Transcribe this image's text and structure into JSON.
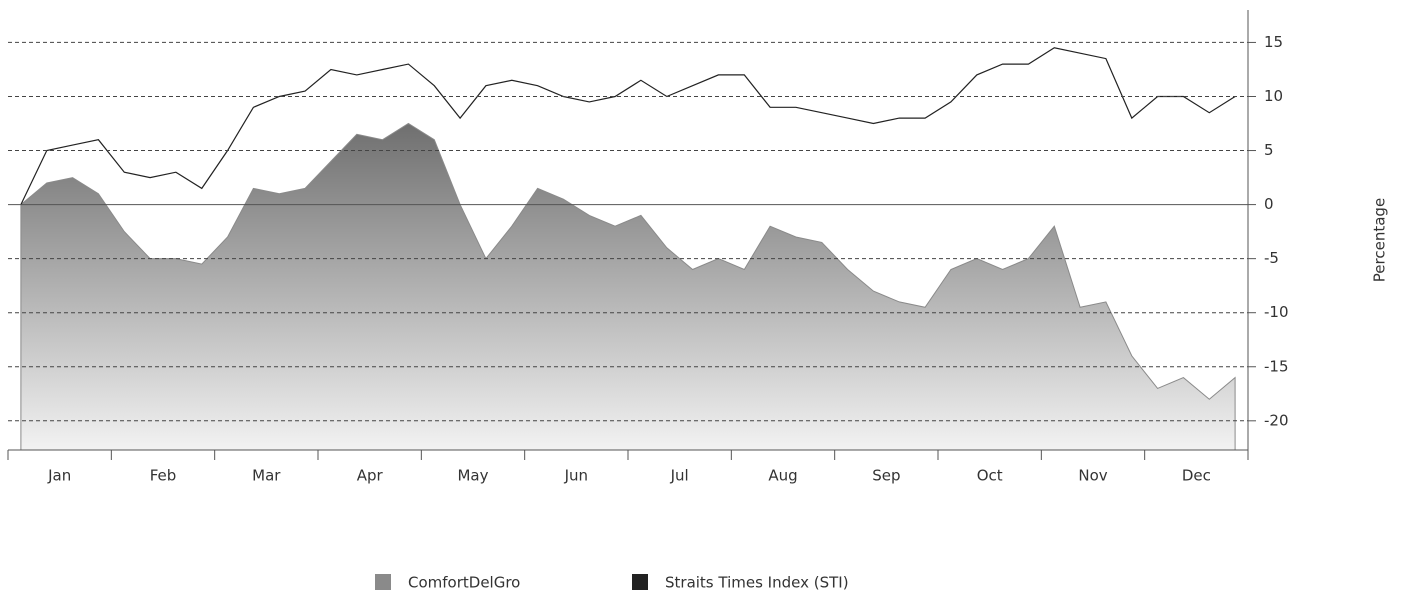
{
  "chart_data": {
    "type": "line",
    "ylabel": "Percentage",
    "categories": [
      "Jan",
      null,
      null,
      null,
      "Feb",
      null,
      null,
      null,
      "Mar",
      null,
      null,
      null,
      "Apr",
      null,
      null,
      null,
      "May",
      null,
      null,
      null,
      "Jun",
      null,
      null,
      null,
      "Jul",
      null,
      null,
      null,
      "Aug",
      null,
      null,
      null,
      "Sep",
      null,
      null,
      null,
      "Oct",
      null,
      null,
      null,
      "Nov",
      null,
      null,
      null,
      "Dec",
      null,
      null,
      null
    ],
    "series": [
      {
        "name": "ComfortDelGro",
        "color": "#8a8a8a",
        "style": "area",
        "values": [
          0,
          2,
          2.5,
          1,
          -2.5,
          -5,
          -5,
          -5.5,
          -3,
          1.5,
          1,
          1.5,
          4,
          6.5,
          6,
          7.5,
          6,
          0,
          -5,
          -2,
          1.5,
          0.5,
          -1,
          -2,
          -1,
          -4,
          -6,
          -5,
          -6,
          -2,
          -3,
          -3.5,
          -6,
          -8,
          -9,
          -9.5,
          -6,
          -5,
          -6,
          -5,
          -2,
          -9.5,
          -9,
          -14,
          -17,
          -16,
          -18,
          -16
        ]
      },
      {
        "name": "Straits Times Index (STI)",
        "color": "#222222",
        "style": "line",
        "values": [
          0,
          5,
          5.5,
          6,
          3,
          2.5,
          3,
          1.5,
          5,
          9,
          10,
          10.5,
          12.5,
          12,
          12.5,
          13,
          11,
          8,
          11,
          11.5,
          11,
          10,
          9.5,
          10,
          11.5,
          10,
          11,
          12,
          12,
          9,
          9,
          8.5,
          8,
          7.5,
          8,
          8,
          9.5,
          12,
          13,
          13,
          14.5,
          14,
          13.5,
          8,
          10,
          10,
          8.5,
          10
        ]
      }
    ],
    "ylim": [
      -22.7,
      18
    ],
    "yticks": [
      -20,
      -15,
      -10,
      -5,
      0,
      5,
      10,
      15
    ],
    "grid": true
  }
}
